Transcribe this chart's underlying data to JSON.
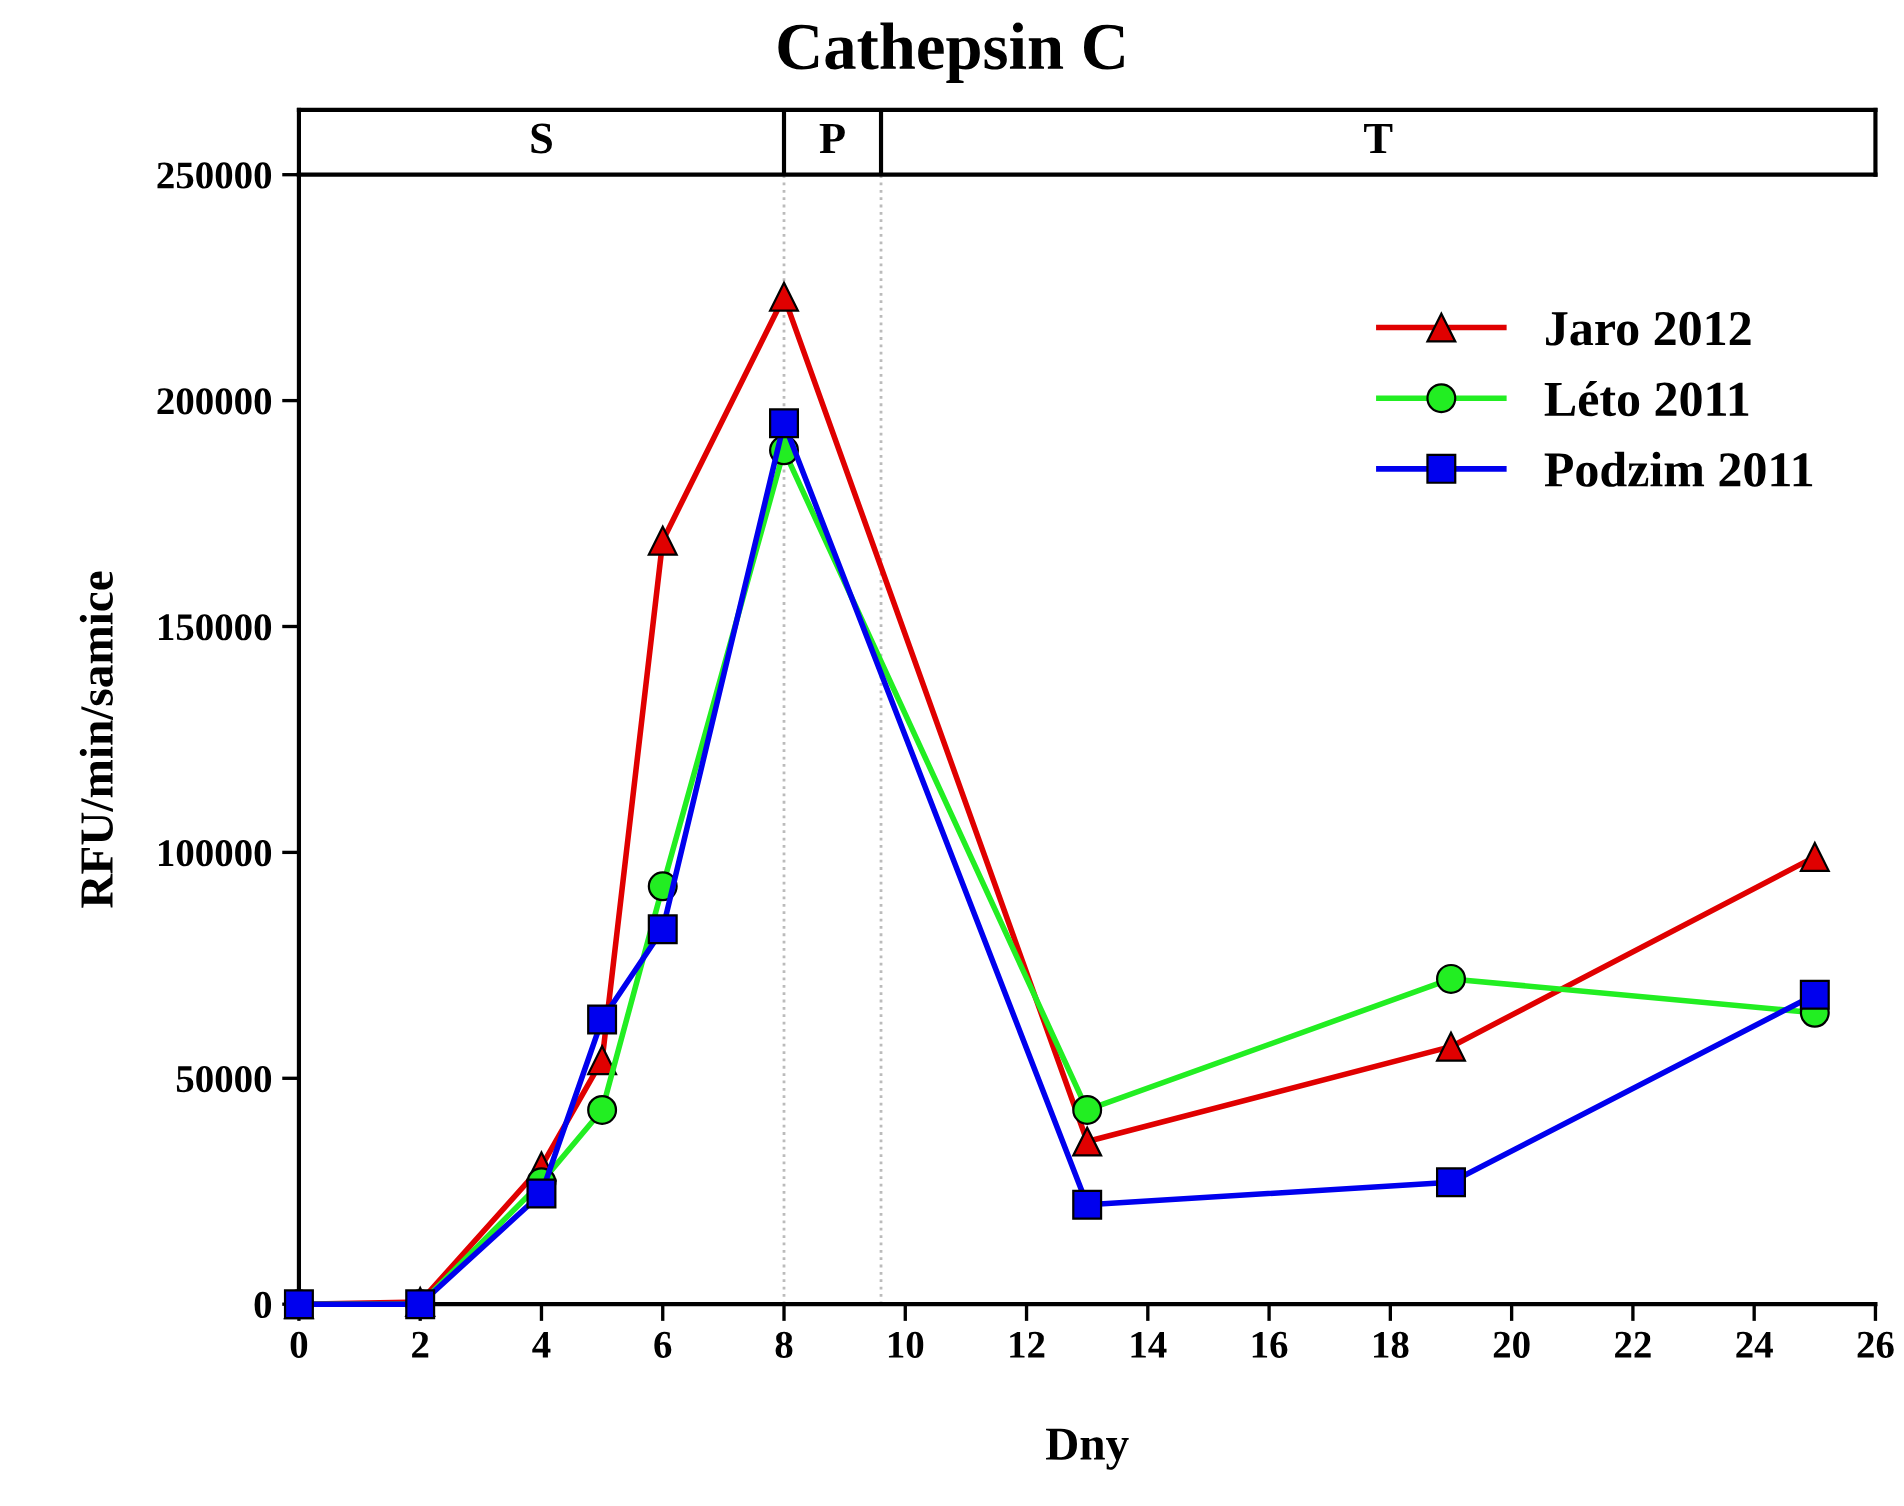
{
  "chart_data": {
    "type": "line",
    "title": "Cathepsin C",
    "xlabel": "Dny",
    "ylabel": "RFU/min/samice",
    "series": [
      {
        "name": "Jaro 2012",
        "color": "#e00000",
        "marker": "triangle",
        "x": [
          0,
          2,
          4,
          5,
          6,
          8,
          13,
          19,
          25
        ],
        "values": [
          0,
          500,
          30500,
          54000,
          169000,
          223000,
          36000,
          57000,
          99000
        ]
      },
      {
        "name": "Léto 2011",
        "color": "#22ee22",
        "marker": "circle",
        "x": [
          0,
          2,
          4,
          5,
          6,
          8,
          13,
          19,
          25
        ],
        "values": [
          0,
          0,
          27000,
          43000,
          92500,
          189000,
          43000,
          72000,
          64500
        ]
      },
      {
        "name": "Podzim 2011",
        "color": "#0000ee",
        "marker": "square",
        "x": [
          0,
          2,
          4,
          5,
          6,
          8,
          13,
          19,
          25
        ],
        "values": [
          0,
          0,
          24500,
          63000,
          83000,
          195000,
          22000,
          27000,
          68500
        ]
      }
    ],
    "xlim": [
      0,
      26
    ],
    "xticks": [
      0,
      2,
      4,
      6,
      8,
      10,
      12,
      14,
      16,
      18,
      20,
      22,
      24,
      26
    ],
    "ylim": [
      0,
      250000
    ],
    "yticks": [
      0,
      50000,
      100000,
      150000,
      200000,
      250000
    ],
    "annotations": [
      "S",
      "P",
      "T"
    ],
    "ref_lines": [
      {
        "axis": "x",
        "value": 8,
        "color": "#bbbbbb",
        "line_style": "dotted"
      },
      {
        "axis": "x",
        "value": 9.6,
        "color": "#bbbbbb",
        "line_style": "dotted"
      }
    ],
    "grid": false,
    "legend": "top right",
    "line_style": "solid"
  }
}
